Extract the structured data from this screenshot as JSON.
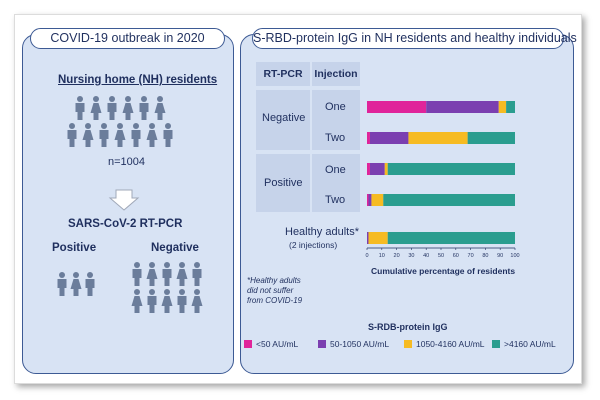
{
  "left_panel": {
    "title": "COVID-19 outbreak in 2020",
    "nh_heading": "Nursing home (NH) residents",
    "n_label": "n=1004",
    "test_label": "SARS-CoV-2 RT-PCR",
    "positive_label": "Positive",
    "negative_label": "Negative",
    "footnote": [
      "*Healthy adults",
      "did not suffer",
      "from COVID-19"
    ]
  },
  "right_panel": {
    "title": "S-RBD-protein IgG in NH residents and healthy individuals",
    "col_rtpcr": "RT-PCR",
    "col_injection": "Injection",
    "group_negative": "Negative",
    "group_positive": "Positive",
    "inj_one_a": "One",
    "inj_two_a": "Two",
    "inj_one_b": "One",
    "inj_two_b": "Two",
    "healthy_label": "Healthy adults*",
    "healthy_sub": "(2 injections)"
  },
  "chart_data": {
    "type": "bar",
    "orientation": "horizontal",
    "stacked": true,
    "categories": [
      "Negative – One",
      "Negative – Two",
      "Positive – One",
      "Positive – Two",
      "Healthy adults* (2 injections)"
    ],
    "series": [
      {
        "name": "<50 AU/mL",
        "color": "#e0249a",
        "values": [
          40,
          2,
          2,
          1,
          0
        ]
      },
      {
        "name": "50-1050 AU/mL",
        "color": "#7b3fb0",
        "values": [
          49,
          26,
          10,
          2,
          1
        ]
      },
      {
        "name": "1050-4160 AU/mL",
        "color": "#f6bb22",
        "values": [
          5,
          40,
          2,
          8,
          13
        ]
      },
      {
        "name": ">4160 AU/mL",
        "color": "#2a9d8f",
        "values": [
          6,
          32,
          86,
          89,
          86
        ]
      }
    ],
    "xlabel": "Cumulative percentage of residents",
    "xlim": [
      0,
      100
    ],
    "xticks": [
      0,
      10,
      20,
      30,
      40,
      50,
      60,
      70,
      80,
      90,
      100
    ],
    "legend_title": "S-RDB-protein IgG",
    "legend_position": "bottom"
  }
}
